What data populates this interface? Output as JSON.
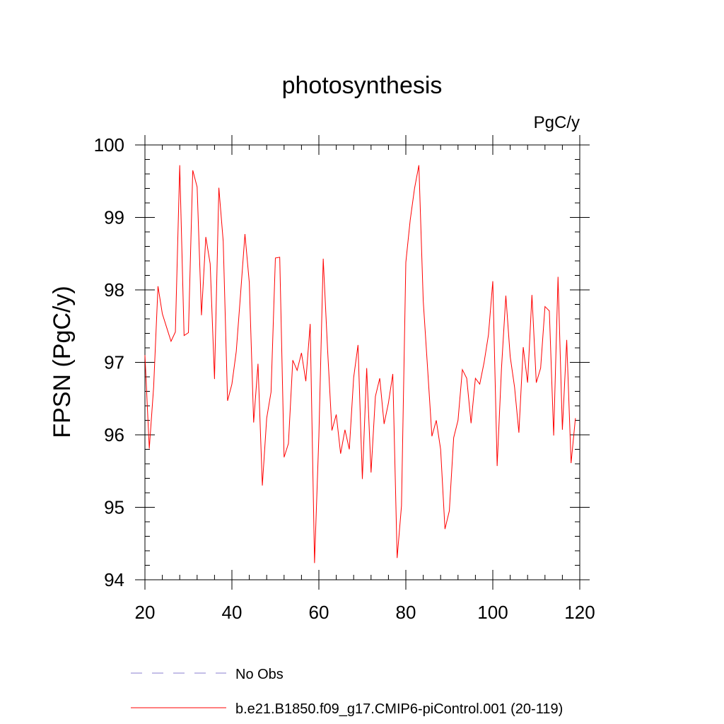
{
  "chart_data": {
    "type": "line",
    "title": "photosynthesis",
    "units_label": "PgC/y",
    "xlabel": "",
    "ylabel": "FPSN  (PgC/y)",
    "xlim": [
      20,
      120
    ],
    "ylim": [
      94,
      100
    ],
    "x_ticks": [
      20,
      40,
      60,
      80,
      100,
      120
    ],
    "y_ticks": [
      94,
      95,
      96,
      97,
      98,
      99,
      100
    ],
    "grid": false,
    "legend_position": "bottom-left",
    "legend": [
      {
        "label": "No Obs",
        "style": "dashed",
        "color": "#8a7fd0"
      },
      {
        "label": "b.e21.B1850.f09_g17.CMIP6-piControl.001 (20-119)",
        "style": "solid",
        "color": "#ff0000"
      }
    ],
    "series": [
      {
        "name": "b.e21.B1850.f09_g17.CMIP6-piControl.001 (20-119)",
        "color": "#ff0000",
        "x_start": 20,
        "x_step": 1,
        "values": [
          97.1,
          95.81,
          96.66,
          98.05,
          97.67,
          97.48,
          97.29,
          97.42,
          99.72,
          97.37,
          97.41,
          99.65,
          99.42,
          97.65,
          98.73,
          98.36,
          96.77,
          99.41,
          98.67,
          96.47,
          96.7,
          97.15,
          97.95,
          98.77,
          98.1,
          96.17,
          96.98,
          95.3,
          96.23,
          96.59,
          98.44,
          98.45,
          95.69,
          95.88,
          97.03,
          96.89,
          97.13,
          96.74,
          97.53,
          94.23,
          95.98,
          98.43,
          97.18,
          96.06,
          96.28,
          95.74,
          96.07,
          95.8,
          96.79,
          97.24,
          95.39,
          96.92,
          95.48,
          96.53,
          96.78,
          96.15,
          96.44,
          96.84,
          94.3,
          95.02,
          98.38,
          98.96,
          99.4,
          99.72,
          97.85,
          96.92,
          95.98,
          96.2,
          95.8,
          94.7,
          94.95,
          95.96,
          96.2,
          96.9,
          96.78,
          96.16,
          96.78,
          96.7,
          97.0,
          97.38,
          98.12,
          95.57,
          96.92,
          97.92,
          97.08,
          96.66,
          96.03,
          97.21,
          96.72,
          97.93,
          96.72,
          96.92,
          97.77,
          97.71,
          95.99,
          98.18,
          96.07,
          97.31,
          95.61,
          96.23
        ]
      }
    ]
  }
}
